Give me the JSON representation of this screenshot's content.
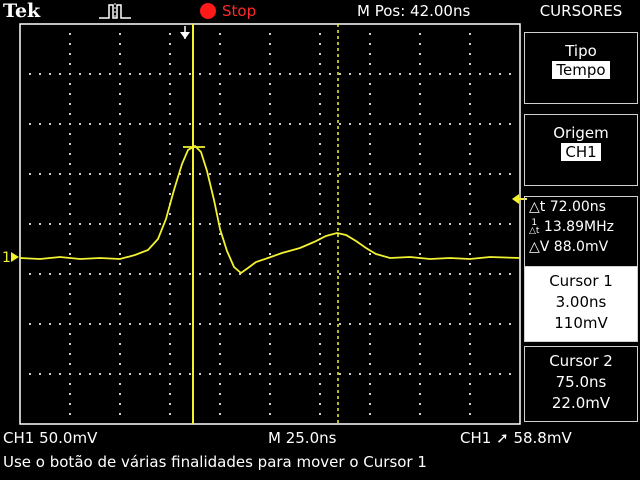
{
  "topbar": {
    "brand": "Tek",
    "run_state": "Stop",
    "horizontal_position": "M Pos: 42.00ns",
    "menu_title": "CURSORES"
  },
  "side_menu": {
    "type_label": "Tipo",
    "type_value": "Tempo",
    "source_label": "Origem",
    "source_value": "CH1",
    "delta_t": "72.00ns",
    "inv_delta_t": "13.89MHz",
    "delta_v": "88.0mV",
    "cursor1": {
      "title": "Cursor 1",
      "time": "3.00ns",
      "value": "110mV"
    },
    "cursor2": {
      "title": "Cursor 2",
      "time": "75.0ns",
      "value": "22.0mV"
    }
  },
  "readout": {
    "ch1_scale": "CH1  50.0mV",
    "timebase": "M 25.0ns",
    "trigger": "CH1",
    "trigger_level": "58.8mV"
  },
  "help_message": "Use o botão de várias finalidades para mover o Cursor 1",
  "graticule": {
    "ch1_marker": "1"
  },
  "colors": {
    "ch1": "#f2f230",
    "run_stop": "#ff1a1a",
    "grid": "#ffffff"
  }
}
